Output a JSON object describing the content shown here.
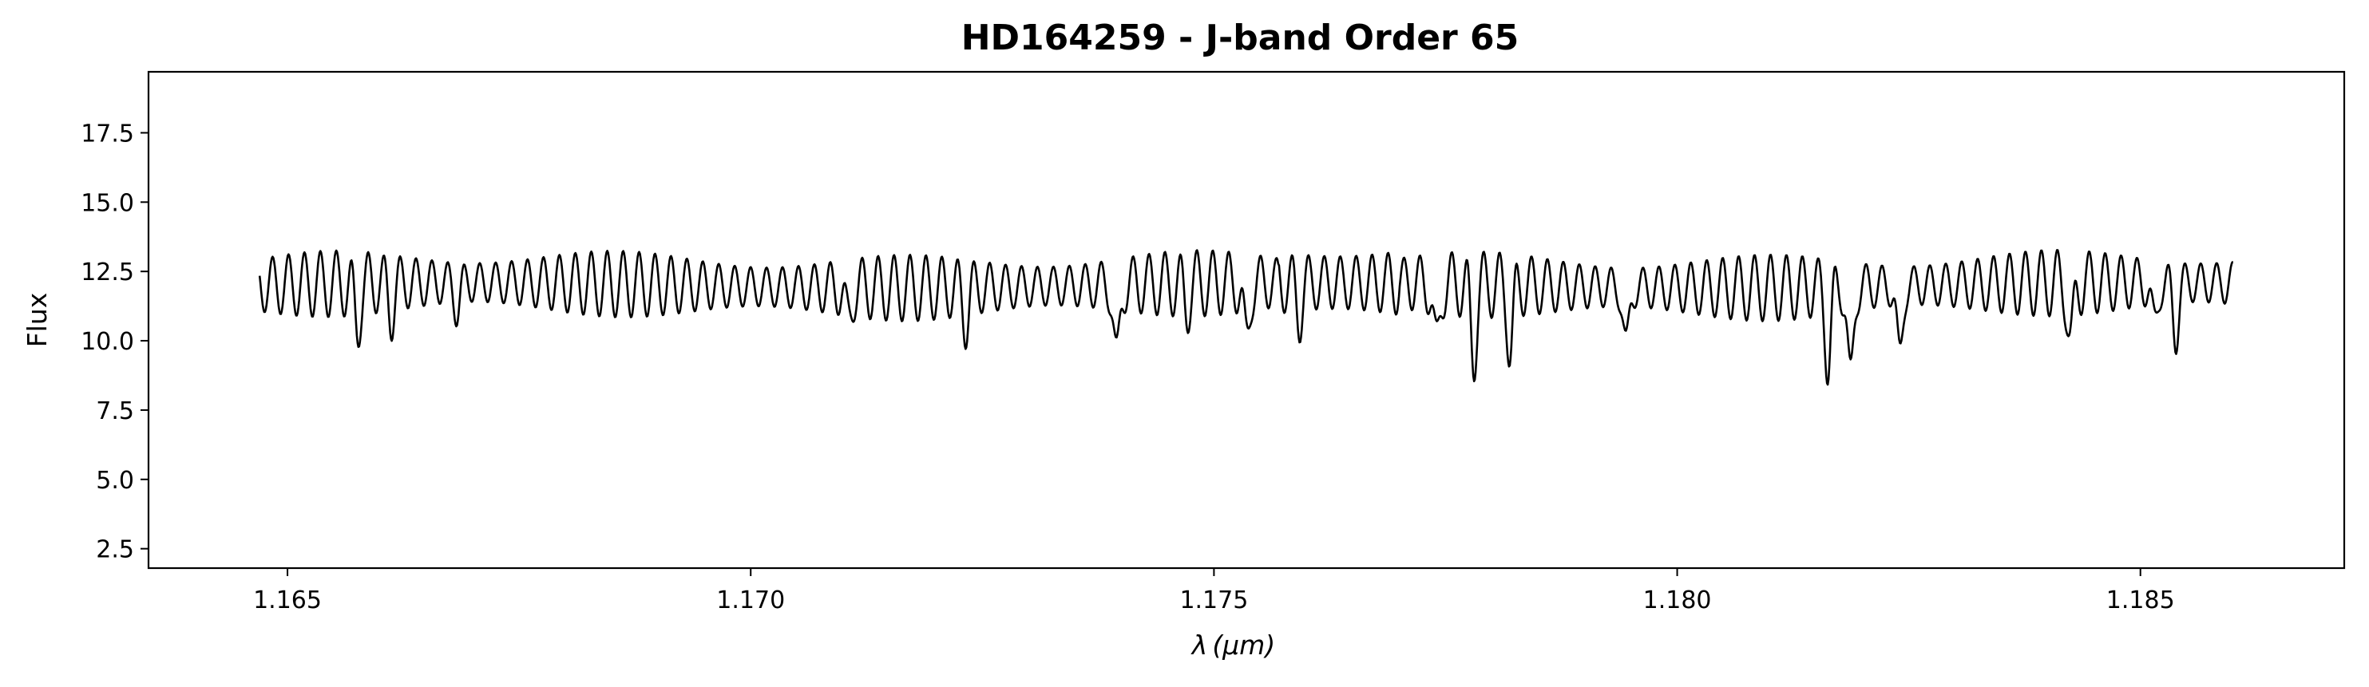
{
  "chart_data": {
    "type": "line",
    "title": "HD164259 - J-band Order 65",
    "xlabel_symbol": "λ",
    "xlabel_unit": "(μm)",
    "ylabel": "Flux",
    "xlim": [
      1.1635,
      1.1872
    ],
    "ylim": [
      1.8,
      19.7
    ],
    "x_ticks": [
      1.165,
      1.17,
      1.175,
      1.18,
      1.185
    ],
    "x_tick_labels": [
      "1.165",
      "1.170",
      "1.175",
      "1.180",
      "1.185"
    ],
    "y_ticks": [
      2.5,
      5.0,
      7.5,
      10.0,
      12.5,
      15.0,
      17.5
    ],
    "y_tick_labels": [
      "2.5",
      "5.0",
      "7.5",
      "10.0",
      "12.5",
      "15.0",
      "17.5"
    ],
    "grid": false,
    "line_color": "#000000",
    "series": [
      {
        "x_range": [
          1.1647,
          1.186
        ],
        "oscillation_period": 0.000172,
        "dips": [
          {
            "x": 1.16575,
            "flux": 9.6
          },
          {
            "x": 1.16612,
            "flux": 10.1
          },
          {
            "x": 1.16683,
            "flux": 10.3
          },
          {
            "x": 1.17105,
            "flux": 10.0
          },
          {
            "x": 1.17232,
            "flux": 10.0
          },
          {
            "x": 1.17395,
            "flux": 8.4
          },
          {
            "x": 1.1747,
            "flux": 10.4
          },
          {
            "x": 1.17535,
            "flux": 9.0
          },
          {
            "x": 1.17592,
            "flux": 10.0
          },
          {
            "x": 1.1774,
            "flux": 8.8
          },
          {
            "x": 1.1778,
            "flux": 8.6
          },
          {
            "x": 1.1782,
            "flux": 9.0
          },
          {
            "x": 1.17945,
            "flux": 9.0
          },
          {
            "x": 1.18163,
            "flux": 8.5
          },
          {
            "x": 1.18187,
            "flux": 7.7
          },
          {
            "x": 1.1824,
            "flux": 8.6
          },
          {
            "x": 1.18425,
            "flux": 9.0
          },
          {
            "x": 1.18515,
            "flux": 9.6
          },
          {
            "x": 1.18538,
            "flux": 9.3
          }
        ]
      }
    ]
  }
}
